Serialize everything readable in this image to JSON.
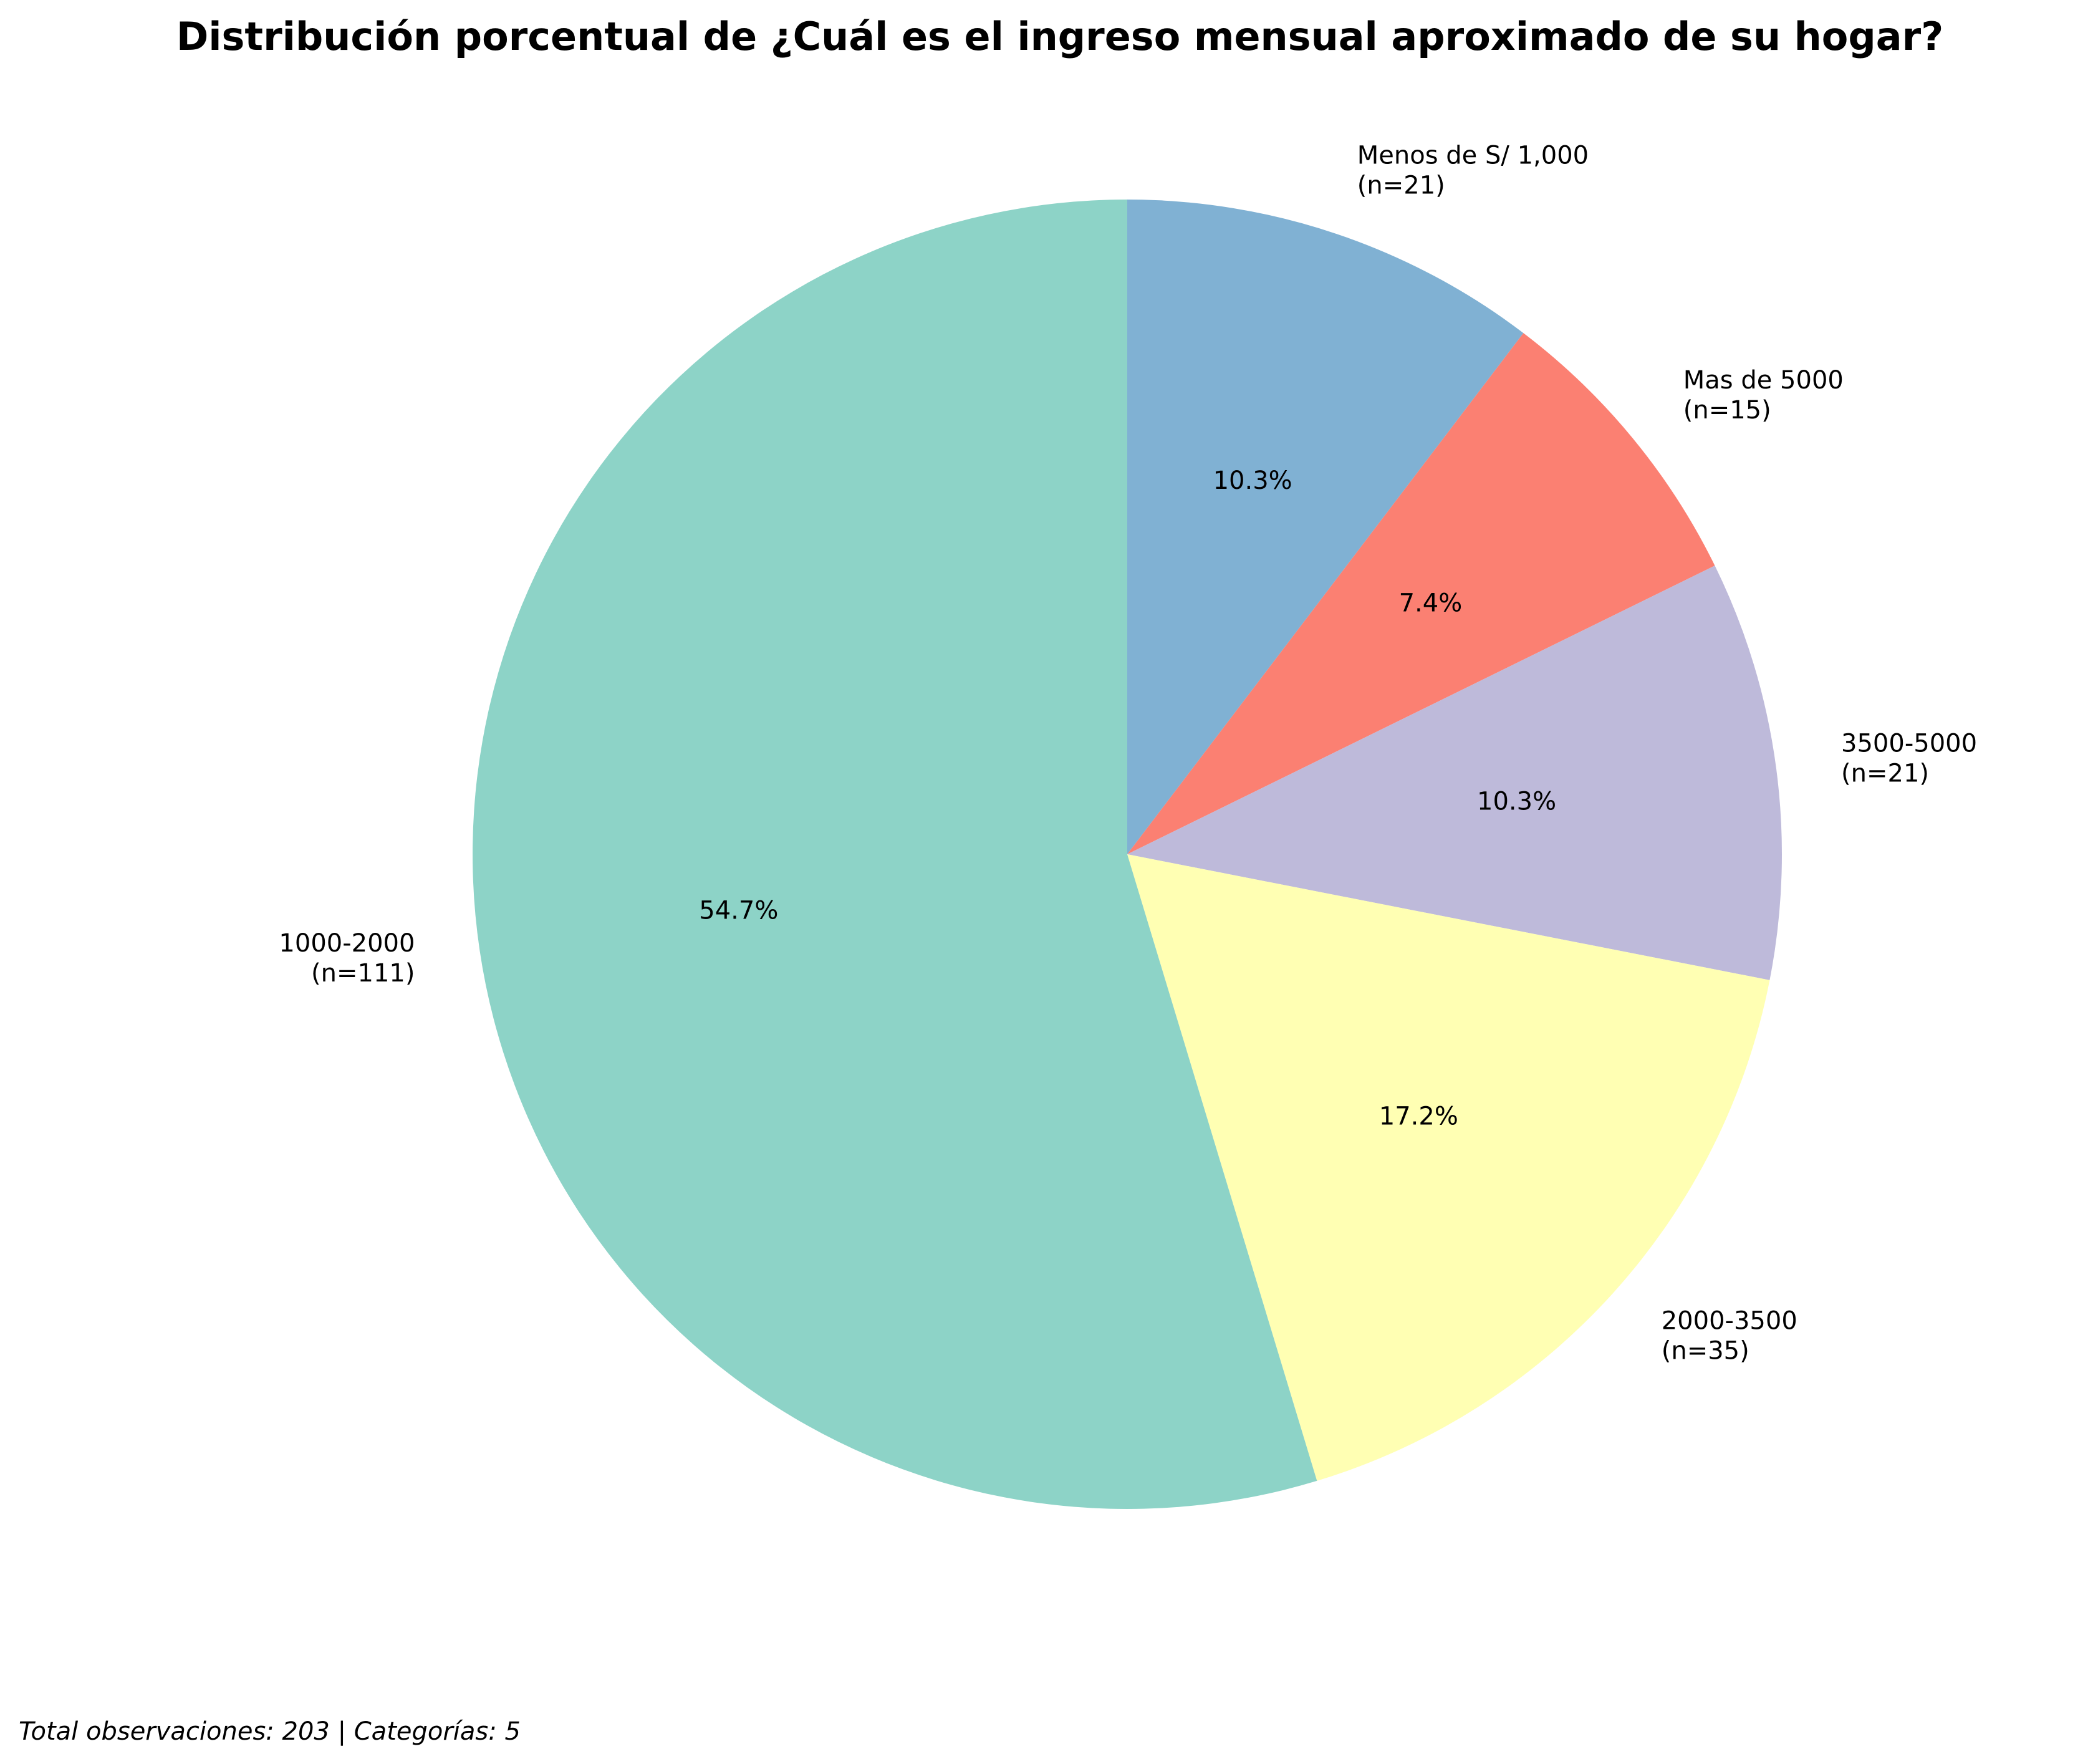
{
  "chart_data": {
    "type": "pie",
    "title": "Distribución porcentual de ¿Cuál es el ingreso mensual aproximado de su hogar?",
    "start_angle_deg": 90,
    "direction": "clockwise",
    "slices": [
      {
        "label": "Menos de S/ 1,000",
        "count_text": "(n=21)",
        "value": 21,
        "percent_text": "10.3%",
        "color": "#80b1d3"
      },
      {
        "label": "Mas de 5000",
        "count_text": "(n=15)",
        "value": 15,
        "percent_text": "7.4%",
        "color": "#fb8072"
      },
      {
        "label": "3500-5000",
        "count_text": "(n=21)",
        "value": 21,
        "percent_text": "10.3%",
        "color": "#bebada"
      },
      {
        "label": "2000-3500",
        "count_text": "(n=35)",
        "value": 35,
        "percent_text": "17.2%",
        "color": "#ffffb3"
      },
      {
        "label": "1000-2000",
        "count_text": "(n=111)",
        "value": 111,
        "percent_text": "54.7%",
        "color": "#8dd3c7"
      }
    ],
    "footer": "Total observaciones: 203 | Categorías: 5"
  }
}
